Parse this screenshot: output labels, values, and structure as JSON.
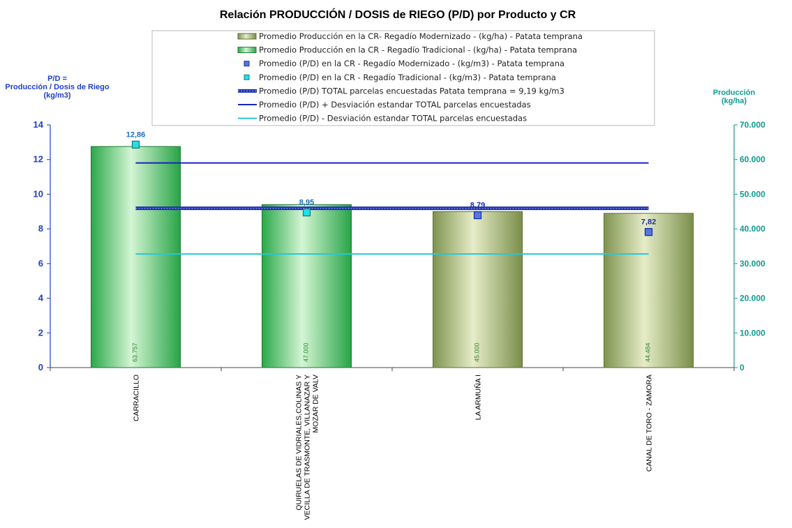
{
  "chart_data": {
    "type": "bar",
    "title": "Relación PRODUCCIÓN / DOSIS de RIEGO (P/D) por Producto y CR",
    "y_left_title": [
      "P/D =",
      "Producción / Dosis de Riego",
      "(kg/m3)"
    ],
    "y_right_title": [
      "Producción",
      "(kg/ha)"
    ],
    "y_left_lim": [
      0,
      14
    ],
    "y_left_ticks": [
      "0",
      "2",
      "4",
      "6",
      "8",
      "10",
      "12",
      "14"
    ],
    "y_right_lim": [
      0,
      70000
    ],
    "y_right_ticks": [
      "0",
      "10.000",
      "20.000",
      "30.000",
      "40.000",
      "50.000",
      "60.000",
      "70.000"
    ],
    "categories": [
      [
        "CARRACILLO"
      ],
      [
        "QUIRUELAS DE VIDRIALES,COLINAS Y",
        "VECILLA DE TRASMONTE, VILLANAZAR Y",
        "MOZAR DE VALV"
      ],
      [
        "LA ARMUÑA I"
      ],
      [
        "CANAL DE TORO - ZAMORA"
      ]
    ],
    "production": [
      63757,
      47000,
      45000,
      44484
    ],
    "production_labels": [
      "63.757",
      "47.000",
      "45.000",
      "44.484"
    ],
    "bar_type": [
      "Tradicional",
      "Tradicional",
      "Modernizado",
      "Modernizado"
    ],
    "pd": [
      12.86,
      8.95,
      8.79,
      7.82
    ],
    "pd_labels": [
      "12,86",
      "8,95",
      "8,79",
      "7,82"
    ],
    "pd_type": [
      "Tradicional",
      "Tradicional",
      "Modernizado",
      "Modernizado"
    ],
    "pd_total_mean": 9.19,
    "pd_plus_sd": 11.8,
    "pd_minus_sd": 6.55,
    "legend": [
      "Promedio Producción en la CR- Regadío Modernizado -  (kg/ha) - Patata temprana",
      "Promedio Producción en la CR - Regadío Tradicional -  (kg/ha) - Patata temprana",
      "Promedio (P/D) en la CR - Regadío Modernizado - (kg/m3) - Patata temprana",
      "Promedio (P/D) en la CR - Regadío Tradicional - (kg/m3) - Patata temprana",
      "Promedio (P/D) TOTAL parcelas encuestadas Patata temprana = 9,19 kg/m3",
      "Promedio (P/D) + Desviación estandar TOTAL parcelas encuestadas",
      "Promedio (P/D) - Desviación estandar TOTAL parcelas encuestadas"
    ],
    "colors": {
      "modernizado_bar": "#8da05a",
      "tradicional_bar": "#3cb85a",
      "pd_modernizado": "#5577dd",
      "pd_tradicional": "#22e0e8",
      "total_mean": "#1c2fa8",
      "plus_sd": "#1a22c0",
      "minus_sd": "#22c8e0",
      "left_axis": "#1f3fc8",
      "right_axis": "#0e9c8e"
    }
  }
}
